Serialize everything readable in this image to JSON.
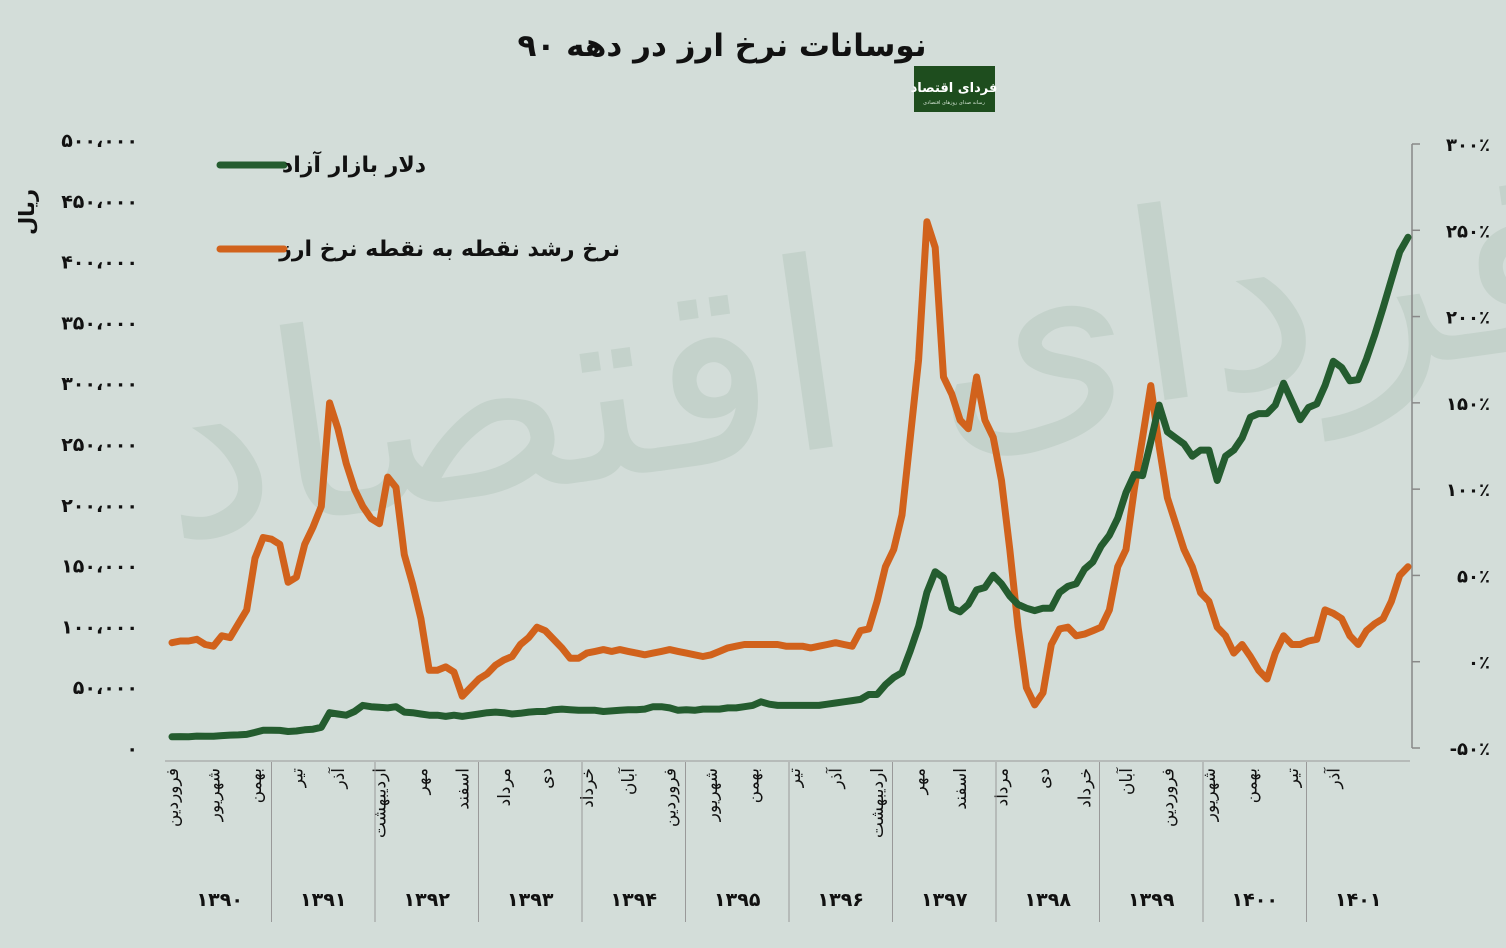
{
  "title": "نوسانات نرخ ارز در دهه ۹۰",
  "logo": {
    "text": "فردای اقتصاد",
    "subtext": "رسانه صدای روزهای اقتصادی"
  },
  "watermark": "فردای اقتصاد",
  "colors": {
    "background": "#d3ddd9",
    "dollar": "#245c2f",
    "growth": "#d1621c",
    "axis": "#888888",
    "logo_bg": "#1e4d1e"
  },
  "chart_data": {
    "type": "line",
    "title": "نوسانات نرخ ارز در دهه ۹۰",
    "ylabel": "ریال",
    "y_left": {
      "min": 0,
      "max": 500000,
      "ticks": [
        0,
        50000,
        100000,
        150000,
        200000,
        250000,
        300000,
        350000,
        400000,
        450000,
        500000
      ],
      "tick_labels": [
        "۰",
        "۵۰،۰۰۰",
        "۱۰۰،۰۰۰",
        "۱۵۰،۰۰۰",
        "۲۰۰،۰۰۰",
        "۲۵۰،۰۰۰",
        "۳۰۰،۰۰۰",
        "۳۵۰،۰۰۰",
        "۴۰۰،۰۰۰",
        "۴۵۰،۰۰۰",
        "۵۰۰،۰۰۰"
      ]
    },
    "y_right": {
      "min": -50,
      "max": 300,
      "ticks": [
        -50,
        0,
        50,
        100,
        150,
        200,
        250,
        300
      ],
      "tick_labels": [
        "-۵۰٪",
        "۰٪",
        "۵۰٪",
        "۱۰۰٪",
        "۱۵۰٪",
        "۲۰۰٪",
        "۲۵۰٪",
        "۳۰۰٪"
      ]
    },
    "legend": {
      "position": "top-left",
      "entries": [
        "دلار بازار آزاد",
        "نرخ رشد نقطه به نقطه نرخ ارز"
      ]
    },
    "years": [
      "۱۳۹۰",
      "۱۳۹۱",
      "۱۳۹۲",
      "۱۳۹۳",
      "۱۳۹۴",
      "۱۳۹۵",
      "۱۳۹۶",
      "۱۳۹۷",
      "۱۳۹۸",
      "۱۳۹۹",
      "۱۴۰۰",
      "۱۴۰۱"
    ],
    "month_labels": [
      {
        "index": 0,
        "label": "فروردین"
      },
      {
        "index": 5,
        "label": "شهریور"
      },
      {
        "index": 10,
        "label": "بهمن"
      },
      {
        "index": 15,
        "label": "تیر"
      },
      {
        "index": 20,
        "label": "آذر"
      },
      {
        "index": 25,
        "label": "اردیبهشت"
      },
      {
        "index": 30,
        "label": "مهر"
      },
      {
        "index": 35,
        "label": "اسفند"
      },
      {
        "index": 40,
        "label": "مرداد"
      },
      {
        "index": 45,
        "label": "دی"
      },
      {
        "index": 50,
        "label": "خرداد"
      },
      {
        "index": 55,
        "label": "آبان"
      },
      {
        "index": 60,
        "label": "فروردین"
      },
      {
        "index": 65,
        "label": "شهریور"
      },
      {
        "index": 70,
        "label": "بهمن"
      },
      {
        "index": 75,
        "label": "تیر"
      },
      {
        "index": 80,
        "label": "آذر"
      },
      {
        "index": 85,
        "label": "اردیبهشت"
      },
      {
        "index": 90,
        "label": "مهر"
      },
      {
        "index": 95,
        "label": "اسفند"
      },
      {
        "index": 100,
        "label": "مرداد"
      },
      {
        "index": 105,
        "label": "دی"
      },
      {
        "index": 110,
        "label": "خرداد"
      },
      {
        "index": 115,
        "label": "آبان"
      },
      {
        "index": 120,
        "label": "فروردین"
      },
      {
        "index": 125,
        "label": "شهریور"
      },
      {
        "index": 130,
        "label": "بهمن"
      },
      {
        "index": 135,
        "label": "تیر"
      },
      {
        "index": 140,
        "label": "آذر"
      }
    ],
    "series": [
      {
        "name": "دلار بازار آزاد",
        "axis": "left",
        "values": [
          9200,
          9400,
          9300,
          9800,
          9700,
          9600,
          10200,
          10600,
          10800,
          11200,
          12800,
          14600,
          14600,
          14500,
          13600,
          14000,
          15000,
          15500,
          17000,
          29000,
          28000,
          27000,
          30000,
          35000,
          34000,
          33500,
          33000,
          34000,
          29500,
          29000,
          28000,
          27000,
          27000,
          26000,
          27000,
          26000,
          27000,
          28000,
          29000,
          29500,
          29000,
          28000,
          28500,
          29500,
          30000,
          30000,
          31500,
          32000,
          31500,
          31000,
          31000,
          31000,
          30000,
          30500,
          31000,
          31500,
          31500,
          32000,
          34000,
          34000,
          33000,
          31000,
          31500,
          31000,
          32000,
          32000,
          32000,
          33000,
          33000,
          34000,
          35000,
          38000,
          36000,
          35000,
          35000,
          35000,
          35000,
          35000,
          35000,
          36000,
          37000,
          38000,
          39000,
          40000,
          44000,
          44000,
          52000,
          58000,
          62000,
          80000,
          100000,
          128000,
          145000,
          140000,
          115000,
          112000,
          118000,
          130000,
          132000,
          142000,
          135000,
          125000,
          118000,
          115000,
          113000,
          115000,
          115000,
          128000,
          133000,
          135000,
          147000,
          153000,
          166000,
          175000,
          189000,
          210000,
          225000,
          224000,
          252000,
          282000,
          260000,
          255000,
          250000,
          240000,
          245000,
          245000,
          220000,
          240000,
          245000,
          255000,
          272000,
          275000,
          275000,
          282000,
          300000,
          285000,
          270000,
          280000,
          283000,
          298000,
          318000,
          313000,
          302000,
          303000,
          320000,
          340000,
          362000,
          385000,
          408000,
          420000
        ]
      },
      {
        "name": "نرخ رشد نقطه به نقطه نرخ ارز",
        "axis": "right",
        "values": [
          11,
          12,
          12,
          13,
          10,
          9,
          15,
          14,
          22,
          30,
          60,
          72,
          71,
          68,
          46,
          49,
          68,
          78,
          90,
          150,
          135,
          115,
          100,
          90,
          83,
          80,
          107,
          101,
          62,
          45,
          25,
          -5,
          -5,
          -3,
          -6,
          -20,
          -15,
          -10,
          -7,
          -2,
          1,
          3,
          10,
          14,
          20,
          18,
          13,
          8,
          2,
          2,
          5,
          6,
          7,
          6,
          7,
          6,
          5,
          4,
          5,
          6,
          7,
          6,
          5,
          4,
          3,
          4,
          6,
          8,
          9,
          10,
          10,
          10,
          10,
          10,
          9,
          9,
          9,
          8,
          9,
          10,
          11,
          10,
          9,
          18,
          19,
          35,
          55,
          65,
          85,
          130,
          175,
          255,
          240,
          165,
          155,
          140,
          135,
          165,
          140,
          130,
          105,
          65,
          20,
          -15,
          -25,
          -18,
          10,
          19,
          20,
          15,
          16,
          18,
          20,
          30,
          55,
          65,
          100,
          130,
          160,
          125,
          95,
          80,
          65,
          55,
          40,
          35,
          20,
          15,
          5,
          10,
          3,
          -5,
          -10,
          5,
          15,
          10,
          10,
          12,
          13,
          30,
          28,
          25,
          15,
          10,
          18,
          22,
          25,
          35,
          50,
          55
        ]
      }
    ]
  }
}
